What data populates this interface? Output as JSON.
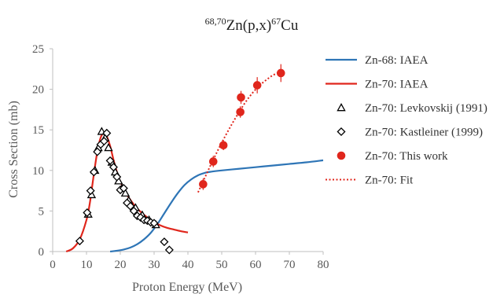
{
  "chart_data": {
    "type": "scatter",
    "title": {
      "pre_sup": "68,70",
      "main": "Zn(p,x)",
      "mid_sup": "67",
      "post": "Cu"
    },
    "xlabel": "Proton Energy (MeV)",
    "ylabel": "Cross Section (mb)",
    "xlim": [
      0,
      80
    ],
    "ylim": [
      0,
      25
    ],
    "xticks": [
      0,
      10,
      20,
      30,
      40,
      50,
      60,
      70,
      80
    ],
    "yticks": [
      0,
      5,
      10,
      15,
      20,
      25
    ],
    "grid": false,
    "legend_position": "right",
    "series": [
      {
        "name": "Zn-68: IAEA",
        "kind": "line",
        "color": "#2e75b6",
        "x": [
          17,
          19,
          21,
          23,
          25,
          27,
          29,
          31,
          33,
          35,
          37,
          39,
          41,
          43,
          45,
          47,
          50,
          55,
          60,
          65,
          70,
          75,
          80
        ],
        "y": [
          0.0,
          0.1,
          0.25,
          0.5,
          0.9,
          1.5,
          2.3,
          3.4,
          4.7,
          6.0,
          7.2,
          8.2,
          8.9,
          9.4,
          9.7,
          9.85,
          10.0,
          10.2,
          10.4,
          10.6,
          10.8,
          11.0,
          11.25
        ]
      },
      {
        "name": "Zn-70: IAEA",
        "kind": "line",
        "color": "#e0261c",
        "x": [
          4,
          6,
          8,
          10,
          11,
          12,
          13,
          14,
          15,
          16,
          17,
          18,
          19,
          20,
          22,
          24,
          26,
          28,
          30,
          32,
          34,
          36,
          38,
          40
        ],
        "y": [
          0.0,
          0.4,
          1.5,
          3.9,
          6.0,
          9.0,
          11.8,
          13.8,
          14.6,
          14.2,
          13.0,
          11.3,
          9.8,
          8.6,
          7.0,
          5.8,
          4.9,
          4.2,
          3.6,
          3.2,
          2.9,
          2.7,
          2.5,
          2.35
        ]
      },
      {
        "name": "Zn-70: Levkovskij (1991)",
        "kind": "marker",
        "marker": "triangle",
        "color": "#000000",
        "x": [
          10.5,
          11.5,
          12.5,
          13.5,
          14.5,
          15.5,
          16.5,
          17.5,
          18.5,
          19.5,
          20.5,
          21.5,
          22.5,
          24.5,
          26.5,
          28.5,
          30.5
        ],
        "y": [
          4.6,
          7.0,
          10.0,
          12.8,
          14.8,
          14.0,
          12.8,
          11.0,
          9.8,
          8.7,
          7.8,
          7.2,
          6.3,
          5.4,
          4.5,
          3.9,
          3.3
        ]
      },
      {
        "name": "Zn-70: Kastleiner (1999)",
        "kind": "marker",
        "marker": "diamond",
        "color": "#000000",
        "x": [
          8,
          10.2,
          11.2,
          12.2,
          13.2,
          14.2,
          15.2,
          16,
          17,
          18,
          19,
          20,
          21,
          22,
          23,
          24,
          25,
          26,
          27,
          28,
          29,
          30,
          33,
          34.5
        ],
        "y": [
          1.3,
          4.8,
          7.5,
          9.8,
          12.3,
          13.2,
          13.6,
          14.6,
          11.2,
          10.4,
          9.2,
          7.6,
          7.8,
          6.0,
          5.6,
          5.0,
          4.4,
          4.2,
          3.9,
          3.8,
          3.6,
          3.5,
          1.2,
          0.2
        ]
      },
      {
        "name": "Zn-70: This work",
        "kind": "marker",
        "marker": "circle",
        "color": "#e0261c",
        "x": [
          44.5,
          47.5,
          50.5,
          55.5,
          55.7,
          60.5,
          67.5
        ],
        "y": [
          8.3,
          11.1,
          13.1,
          17.2,
          19.0,
          20.5,
          22.0
        ],
        "err": [
          0.7,
          0.7,
          0.6,
          0.7,
          0.8,
          1.0,
          1.1
        ]
      },
      {
        "name": "Zn-70: Fit",
        "kind": "dotted",
        "color": "#e0261c",
        "x": [
          43,
          45,
          47,
          49,
          51,
          53,
          55,
          57,
          59,
          61,
          63,
          65,
          67,
          68
        ],
        "y": [
          7.3,
          9.1,
          10.9,
          12.6,
          14.2,
          15.7,
          17.1,
          18.4,
          19.5,
          20.4,
          21.1,
          21.7,
          22.1,
          22.3
        ]
      }
    ]
  }
}
